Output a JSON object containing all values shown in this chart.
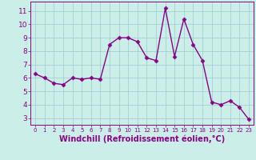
{
  "x": [
    0,
    1,
    2,
    3,
    4,
    5,
    6,
    7,
    8,
    9,
    10,
    11,
    12,
    13,
    14,
    15,
    16,
    17,
    18,
    19,
    20,
    21,
    22,
    23
  ],
  "y": [
    6.3,
    6.0,
    5.6,
    5.5,
    6.0,
    5.9,
    6.0,
    5.9,
    8.5,
    9.0,
    9.0,
    8.7,
    7.5,
    7.3,
    11.2,
    7.6,
    10.4,
    8.5,
    7.3,
    4.2,
    4.0,
    4.3,
    3.8,
    2.9
  ],
  "line_color": "#880088",
  "marker": "D",
  "marker_size": 2.5,
  "bg_color": "#cceee8",
  "grid_color": "#99cccc",
  "xlabel": "Windchill (Refroidissement éolien,°C)",
  "xlabel_color": "#880088",
  "tick_color": "#880088",
  "xlim": [
    -0.5,
    23.5
  ],
  "ylim": [
    2.5,
    11.7
  ],
  "yticks": [
    3,
    4,
    5,
    6,
    7,
    8,
    9,
    10,
    11
  ],
  "xticks": [
    0,
    1,
    2,
    3,
    4,
    5,
    6,
    7,
    8,
    9,
    10,
    11,
    12,
    13,
    14,
    15,
    16,
    17,
    18,
    19,
    20,
    21,
    22,
    23
  ],
  "linewidth": 1.0,
  "font_size": 6.5,
  "xlabel_font_size": 7.0
}
